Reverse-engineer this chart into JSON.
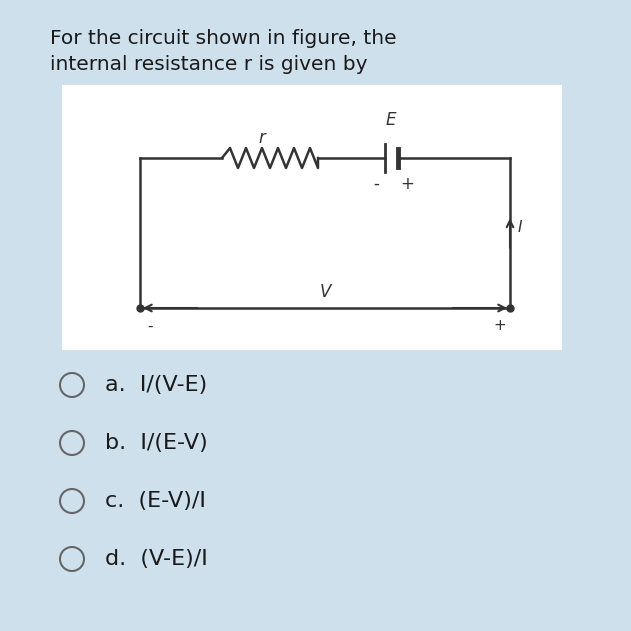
{
  "title_line1": "For the circuit shown in figure, the",
  "title_line2": "internal resistance r is given by",
  "bg_color": "#cfe0ed",
  "circuit_box_bg": "#ffffff",
  "options": [
    "a.  I/(V-E)",
    "b.  I/(E-V)",
    "c.  (E-V)/I",
    "d.  (V-E)/I"
  ],
  "title_fontsize": 14.5,
  "option_fontsize": 16,
  "circuit_color": "#333333",
  "resistor_label": "r",
  "battery_label": "E",
  "voltage_label": "V",
  "current_label": "I",
  "fig_bg": "#cfe0ed"
}
